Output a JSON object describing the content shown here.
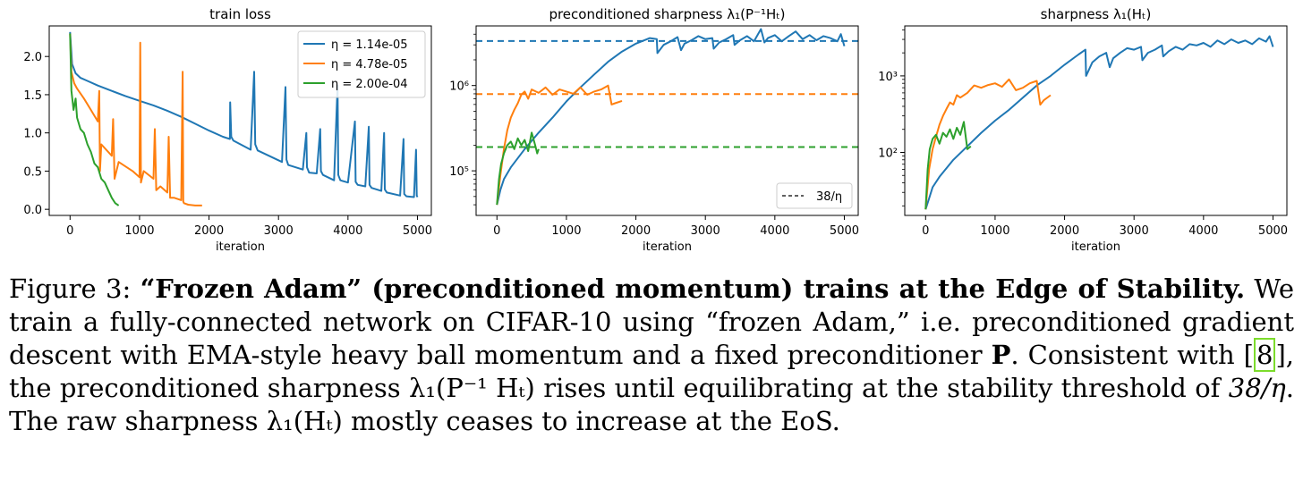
{
  "colors": {
    "blue": "#1f77b4",
    "orange": "#ff7f0e",
    "green": "#2ca02c"
  },
  "legend_panel1": [
    {
      "label": "η = 1.14e-05",
      "color": "#1f77b4"
    },
    {
      "label": "η = 4.78e-05",
      "color": "#ff7f0e"
    },
    {
      "label": "η = 2.00e-04",
      "color": "#2ca02c"
    }
  ],
  "legend_panel2": {
    "label": "38/η",
    "color": "#000000",
    "style": "dashed"
  },
  "chart_data": [
    {
      "type": "line",
      "title": "train loss",
      "xlabel": "iteration",
      "ylabel": "",
      "xlim": [
        -300,
        5200
      ],
      "ylim": [
        -0.08,
        2.4
      ],
      "xticks": [
        0,
        1000,
        2000,
        3000,
        4000,
        5000
      ],
      "xtick_labels": [
        "0",
        "1000",
        "2000",
        "3000",
        "4000",
        "5000"
      ],
      "yticks": [
        0.0,
        0.5,
        1.0,
        1.5,
        2.0
      ],
      "ytick_labels": [
        "0.0",
        "0.5",
        "1.0",
        "1.5",
        "2.0"
      ],
      "log_y": false,
      "legend_position": "upper-right",
      "series": [
        {
          "name": "η = 1.14e-05",
          "color": "#1f77b4",
          "x": [
            0,
            30,
            80,
            150,
            250,
            400,
            600,
            800,
            1000,
            1200,
            1400,
            1600,
            1800,
            2000,
            2200,
            2300,
            2305,
            2320,
            2350,
            2600,
            2650,
            2665,
            2700,
            3050,
            3100,
            3115,
            3140,
            3350,
            3400,
            3410,
            3440,
            3550,
            3600,
            3610,
            3640,
            3800,
            3850,
            3860,
            3890,
            4000,
            4100,
            4110,
            4140,
            4250,
            4300,
            4310,
            4340,
            4480,
            4520,
            4530,
            4560,
            4750,
            4800,
            4810,
            4840,
            4950,
            4980,
            4990,
            5000
          ],
          "y": [
            2.32,
            1.9,
            1.78,
            1.72,
            1.68,
            1.62,
            1.55,
            1.48,
            1.42,
            1.36,
            1.29,
            1.21,
            1.12,
            1.03,
            0.95,
            0.92,
            1.4,
            0.95,
            0.9,
            0.78,
            1.8,
            0.85,
            0.77,
            0.62,
            1.6,
            0.65,
            0.58,
            0.52,
            1.0,
            0.55,
            0.48,
            0.47,
            1.05,
            0.5,
            0.45,
            0.38,
            1.62,
            0.45,
            0.38,
            0.35,
            1.15,
            0.36,
            0.32,
            0.3,
            1.08,
            0.32,
            0.28,
            0.24,
            1.0,
            0.26,
            0.22,
            0.18,
            0.92,
            0.2,
            0.17,
            0.16,
            0.78,
            0.18,
            0.16
          ]
        },
        {
          "name": "η = 4.78e-05",
          "color": "#ff7f0e",
          "x": [
            0,
            20,
            60,
            100,
            200,
            300,
            400,
            420,
            430,
            450,
            600,
            620,
            640,
            700,
            900,
            1000,
            1010,
            1020,
            1060,
            1200,
            1220,
            1240,
            1300,
            1400,
            1420,
            1440,
            1500,
            1600,
            1620,
            1630,
            1640,
            1700,
            1800,
            1900
          ],
          "y": [
            2.3,
            1.8,
            1.65,
            1.58,
            1.45,
            1.3,
            1.15,
            1.55,
            0.5,
            0.85,
            0.7,
            1.18,
            0.4,
            0.62,
            0.5,
            0.42,
            2.18,
            0.35,
            0.5,
            0.4,
            1.05,
            0.25,
            0.3,
            0.22,
            0.95,
            0.15,
            0.15,
            0.12,
            1.8,
            0.1,
            0.08,
            0.06,
            0.05,
            0.05
          ]
        },
        {
          "name": "η = 2.00e-04",
          "color": "#2ca02c",
          "x": [
            0,
            20,
            50,
            80,
            100,
            150,
            200,
            250,
            300,
            350,
            400,
            450,
            500,
            550,
            600,
            650,
            700
          ],
          "y": [
            2.3,
            1.55,
            1.3,
            1.45,
            1.2,
            1.05,
            1.0,
            0.85,
            0.75,
            0.6,
            0.55,
            0.4,
            0.35,
            0.25,
            0.15,
            0.08,
            0.05
          ]
        }
      ]
    },
    {
      "type": "line",
      "title": "preconditioned sharpness λ₁(P⁻¹Hₜ)",
      "xlabel": "iteration",
      "ylabel": "",
      "log_y": true,
      "xlim": [
        -300,
        5200
      ],
      "ylim": [
        30000,
        5000000
      ],
      "xticks": [
        0,
        1000,
        2000,
        3000,
        4000,
        5000
      ],
      "xtick_labels": [
        "0",
        "1000",
        "2000",
        "3000",
        "4000",
        "5000"
      ],
      "yticks": [
        100000,
        1000000
      ],
      "ytick_labels": [
        "10⁵",
        "10⁶"
      ],
      "legend_position": "lower-right",
      "hlines": [
        {
          "y": 3330000,
          "color": "#1f77b4"
        },
        {
          "y": 795000,
          "color": "#ff7f0e"
        },
        {
          "y": 190000,
          "color": "#2ca02c"
        }
      ],
      "series": [
        {
          "name": "η = 1.14e-05",
          "color": "#1f77b4",
          "x": [
            0,
            50,
            100,
            200,
            400,
            600,
            800,
            1000,
            1200,
            1400,
            1600,
            1800,
            2000,
            2200,
            2300,
            2310,
            2400,
            2500,
            2600,
            2650,
            2700,
            2800,
            2900,
            3000,
            3100,
            3120,
            3200,
            3300,
            3400,
            3420,
            3500,
            3600,
            3700,
            3800,
            3850,
            3900,
            4000,
            4100,
            4200,
            4300,
            4400,
            4500,
            4600,
            4700,
            4800,
            4900,
            4950,
            5000
          ],
          "y": [
            40000,
            60000,
            80000,
            110000,
            180000,
            280000,
            420000,
            650000,
            950000,
            1350000,
            1900000,
            2500000,
            3100000,
            3600000,
            3500000,
            2400000,
            3000000,
            3300000,
            3700000,
            2600000,
            3100000,
            3400000,
            3800000,
            3500000,
            3600000,
            2700000,
            3200000,
            3500000,
            3900000,
            3000000,
            3400000,
            3800000,
            3300000,
            4600000,
            3200000,
            3600000,
            3900000,
            3300000,
            3800000,
            4300000,
            3500000,
            3900000,
            3400000,
            3800000,
            3600000,
            3300000,
            4000000,
            2900000
          ]
        },
        {
          "name": "η = 4.78e-05",
          "color": "#ff7f0e",
          "x": [
            0,
            50,
            100,
            150,
            200,
            250,
            300,
            350,
            400,
            450,
            500,
            600,
            700,
            800,
            900,
            1000,
            1100,
            1200,
            1300,
            1400,
            1500,
            1600,
            1650,
            1700,
            1800
          ],
          "y": [
            40000,
            90000,
            180000,
            300000,
            420000,
            520000,
            620000,
            780000,
            850000,
            700000,
            900000,
            820000,
            950000,
            780000,
            900000,
            850000,
            800000,
            950000,
            780000,
            850000,
            900000,
            1000000,
            600000,
            620000,
            660000
          ]
        },
        {
          "name": "η = 2.00e-04",
          "color": "#2ca02c",
          "x": [
            0,
            30,
            60,
            100,
            150,
            200,
            250,
            300,
            350,
            400,
            450,
            500,
            550,
            580,
            600
          ],
          "y": [
            40000,
            80000,
            120000,
            160000,
            200000,
            220000,
            180000,
            240000,
            200000,
            230000,
            170000,
            280000,
            200000,
            160000,
            180000
          ]
        }
      ]
    },
    {
      "type": "line",
      "title": "sharpness λ₁(Hₜ)",
      "xlabel": "iteration",
      "ylabel": "",
      "log_y": true,
      "xlim": [
        -300,
        5200
      ],
      "ylim": [
        15,
        4500
      ],
      "xticks": [
        0,
        1000,
        2000,
        3000,
        4000,
        5000
      ],
      "xtick_labels": [
        "0",
        "1000",
        "2000",
        "3000",
        "4000",
        "5000"
      ],
      "yticks": [
        100,
        1000
      ],
      "ytick_labels": [
        "10²",
        "10³"
      ],
      "series": [
        {
          "name": "η = 1.14e-05",
          "color": "#1f77b4",
          "x": [
            0,
            50,
            100,
            200,
            400,
            600,
            800,
            1000,
            1200,
            1400,
            1600,
            1800,
            2000,
            2200,
            2300,
            2310,
            2400,
            2500,
            2600,
            2650,
            2700,
            2800,
            2900,
            3000,
            3100,
            3120,
            3200,
            3300,
            3400,
            3420,
            3500,
            3600,
            3700,
            3800,
            3900,
            4000,
            4100,
            4200,
            4300,
            4400,
            4500,
            4600,
            4700,
            4800,
            4900,
            4950,
            5000
          ],
          "y": [
            18,
            25,
            35,
            48,
            80,
            120,
            180,
            260,
            360,
            520,
            750,
            1000,
            1400,
            1900,
            2200,
            1000,
            1500,
            1800,
            2000,
            1300,
            1700,
            2000,
            2300,
            2200,
            2400,
            1600,
            2000,
            2200,
            2500,
            1800,
            2100,
            2400,
            2200,
            2600,
            2500,
            2700,
            2400,
            2900,
            2600,
            3000,
            2700,
            2900,
            2600,
            3100,
            2800,
            3300,
            2400
          ]
        },
        {
          "name": "η = 4.78e-05",
          "color": "#ff7f0e",
          "x": [
            0,
            50,
            100,
            150,
            200,
            250,
            300,
            350,
            400,
            450,
            500,
            600,
            700,
            800,
            900,
            1000,
            1100,
            1200,
            1300,
            1400,
            1500,
            1600,
            1650,
            1700,
            1800
          ],
          "y": [
            18,
            60,
            110,
            160,
            230,
            300,
            370,
            450,
            420,
            560,
            520,
            600,
            750,
            700,
            760,
            800,
            720,
            900,
            650,
            700,
            800,
            860,
            420,
            480,
            560
          ]
        },
        {
          "name": "η = 2.00e-04",
          "color": "#2ca02c",
          "x": [
            0,
            30,
            60,
            100,
            150,
            200,
            250,
            300,
            350,
            400,
            450,
            500,
            550,
            600,
            650
          ],
          "y": [
            18,
            60,
            110,
            150,
            170,
            130,
            180,
            160,
            200,
            150,
            210,
            170,
            250,
            110,
            120
          ]
        }
      ]
    }
  ],
  "caption": {
    "label": "Figure 3:",
    "bold": "“Frozen Adam” (preconditioned momentum) trains at the Edge of Stability.",
    "text_a": "We train a fully-connected network on CIFAR-10 using “frozen Adam,” i.e. preconditioned gradient descent with EMA-style heavy ball momentum and a fixed preconditioner",
    "symbol_p": "P",
    "text_b": ". Consistent with [",
    "cite": "8",
    "text_c": "], the preconditioned sharpness",
    "math_1": "λ₁(P⁻¹ Hₜ)",
    "text_d": "rises until equilibrating at the stability threshold of",
    "math_2": "38/η",
    "text_e": ". The raw sharpness",
    "math_3": "λ₁(Hₜ)",
    "text_f": "mostly ceases to increase at the EoS."
  }
}
